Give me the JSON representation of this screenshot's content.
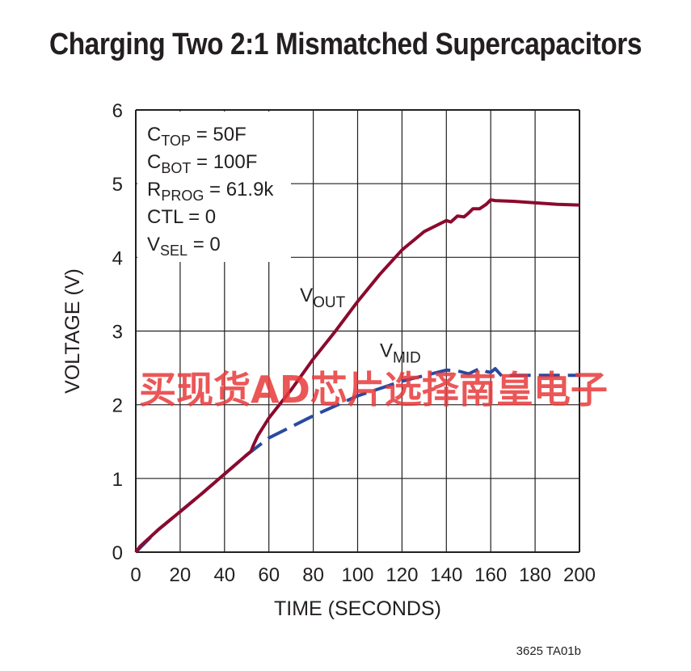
{
  "title": "Charging Two 2:1 Mismatched Supercapacitors",
  "footer": "3625 TA01b",
  "watermark": "买现货AD芯片选择南皇电子",
  "colors": {
    "vout": "#8b0a2d",
    "vmid": "#2a4aa0",
    "grid": "#231f20",
    "watermark": "#e8393a"
  },
  "legend": {
    "lines": [
      {
        "main": "C",
        "sub": "TOP",
        "rest": " = 50F"
      },
      {
        "main": "C",
        "sub": "BOT",
        "rest": " = 100F"
      },
      {
        "main": "R",
        "sub": "PROG",
        "rest": " = 61.9k"
      },
      {
        "main": "CTL = 0",
        "sub": "",
        "rest": ""
      },
      {
        "main": "V",
        "sub": "SEL",
        "rest": " = 0"
      }
    ]
  },
  "chart_data": {
    "type": "line",
    "title": "Charging Two 2:1 Mismatched Supercapacitors",
    "xlabel": "TIME (SECONDS)",
    "ylabel": "VOLTAGE (V)",
    "xlim": [
      0,
      200
    ],
    "ylim": [
      0,
      6
    ],
    "xticks": [
      0,
      20,
      40,
      60,
      80,
      100,
      120,
      140,
      160,
      180,
      200
    ],
    "yticks": [
      0,
      1,
      2,
      3,
      4,
      5,
      6
    ],
    "grid": true,
    "series": [
      {
        "name": "VOUT",
        "label_main": "V",
        "label_sub": "OUT",
        "style": "solid",
        "x": [
          0,
          2,
          10,
          20,
          30,
          40,
          50,
          52,
          53,
          55,
          60,
          70,
          80,
          90,
          100,
          110,
          120,
          130,
          140,
          142,
          145,
          148,
          150,
          152,
          155,
          158,
          160,
          162,
          170,
          180,
          190,
          200
        ],
        "y": [
          0,
          0.08,
          0.3,
          0.55,
          0.8,
          1.06,
          1.32,
          1.37,
          1.45,
          1.58,
          1.82,
          2.2,
          2.62,
          3.0,
          3.4,
          3.77,
          4.1,
          4.35,
          4.5,
          4.48,
          4.56,
          4.55,
          4.6,
          4.66,
          4.66,
          4.72,
          4.78,
          4.77,
          4.76,
          4.74,
          4.72,
          4.71
        ]
      },
      {
        "name": "VMID",
        "label_main": "V",
        "label_sub": "MID",
        "style": "dashed",
        "x": [
          0,
          10,
          20,
          30,
          40,
          50,
          60,
          80,
          100,
          120,
          140,
          145,
          150,
          155,
          158,
          160,
          162,
          165,
          170,
          180,
          190,
          200
        ],
        "y": [
          0,
          0.3,
          0.55,
          0.8,
          1.06,
          1.32,
          1.55,
          1.85,
          2.12,
          2.32,
          2.47,
          2.46,
          2.42,
          2.49,
          2.45,
          2.44,
          2.49,
          2.39,
          2.4,
          2.4,
          2.4,
          2.4
        ]
      }
    ]
  }
}
